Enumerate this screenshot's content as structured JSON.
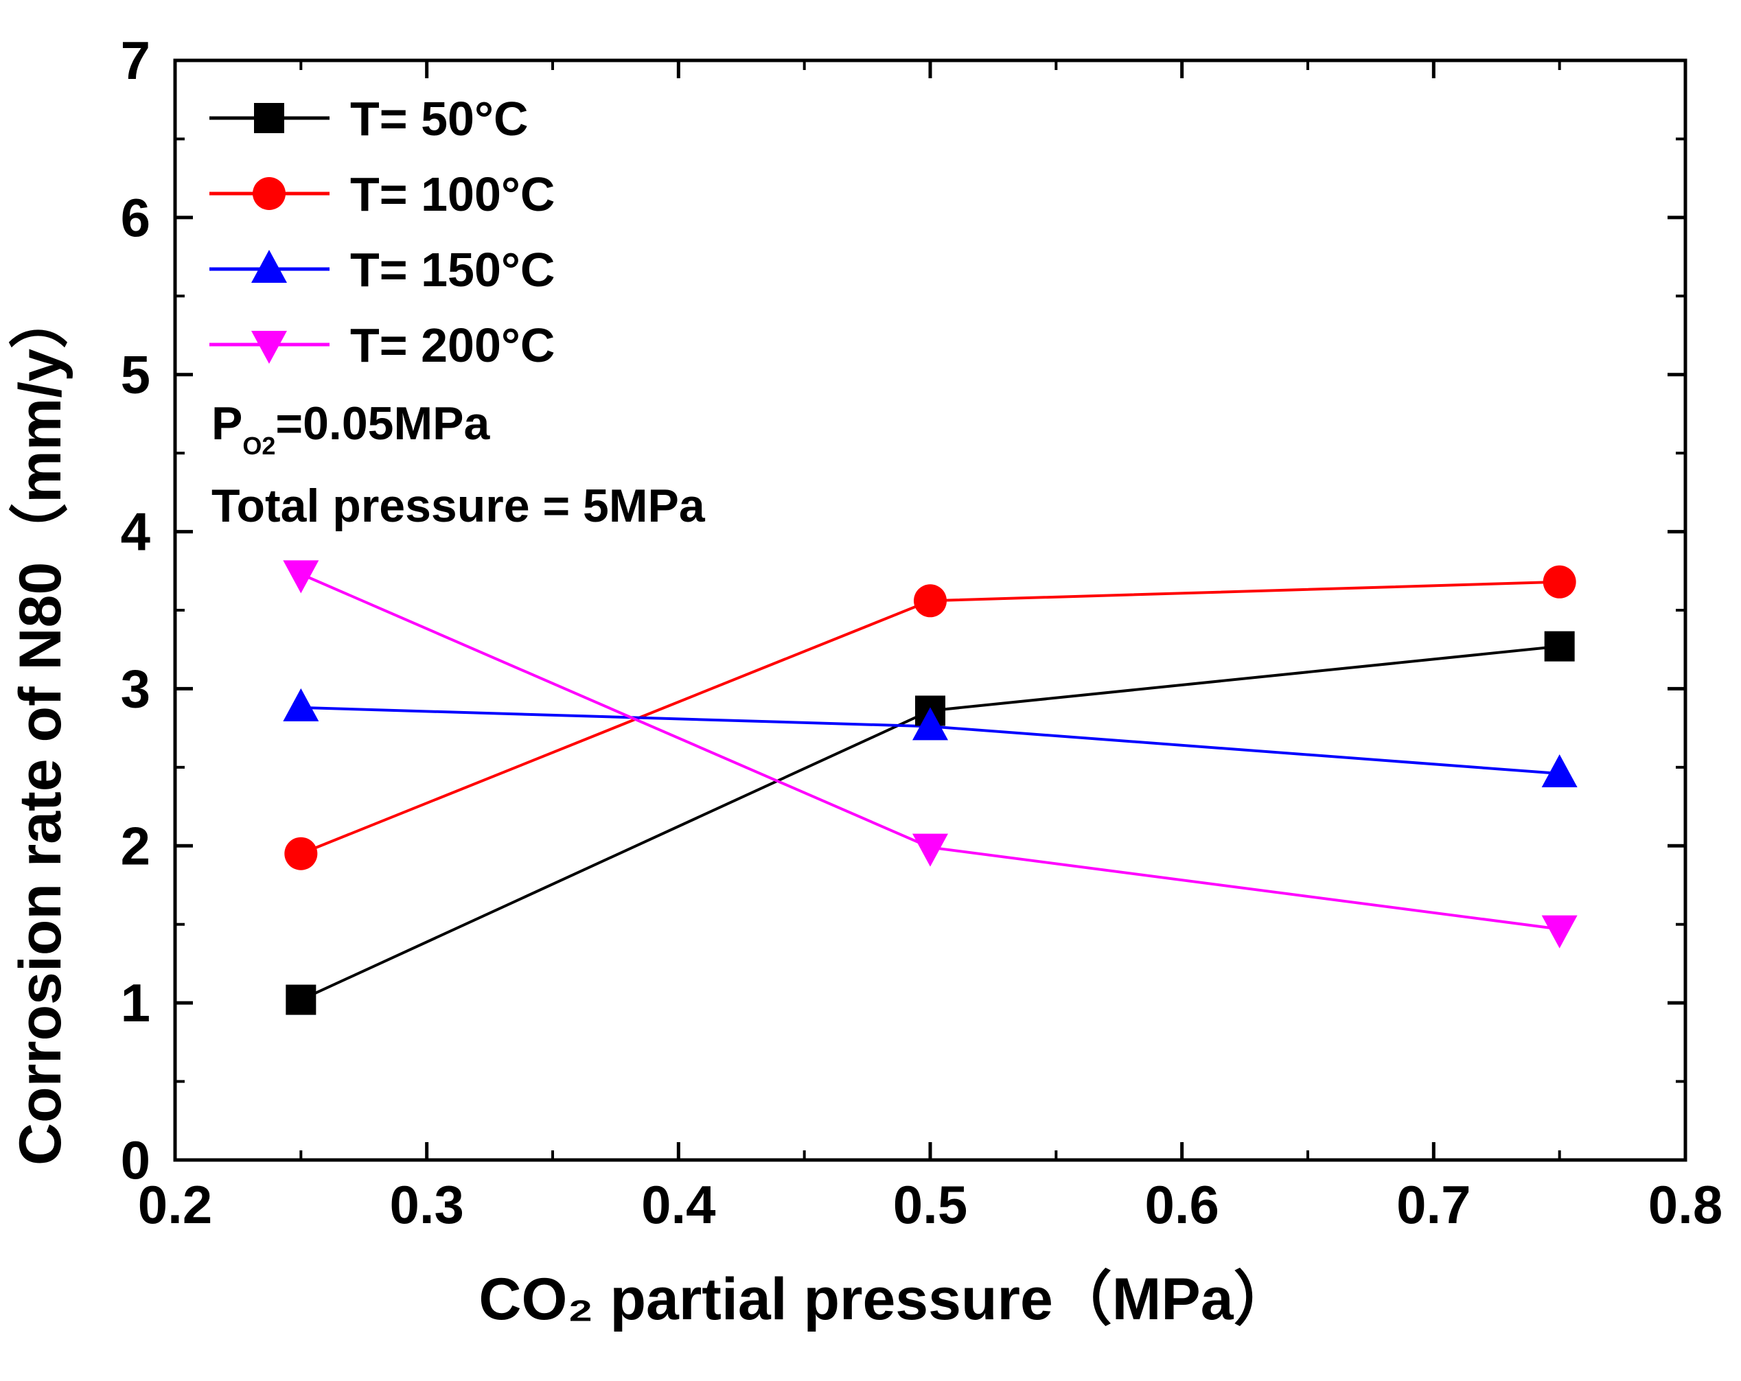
{
  "chart_data": {
    "type": "line",
    "xlabel": "CO₂ partial pressure（MPa）",
    "ylabel": "Corrosion rate of N80（mm/y）",
    "xlim": [
      0.2,
      0.8
    ],
    "ylim": [
      0,
      7
    ],
    "xticks": [
      "0.2",
      "0.3",
      "0.4",
      "0.5",
      "0.6",
      "0.7",
      "0.8"
    ],
    "yticks": [
      "0",
      "1",
      "2",
      "3",
      "4",
      "5",
      "6",
      "7"
    ],
    "grid": false,
    "legend_position": "top-left",
    "series": [
      {
        "name": "T= 50°C",
        "color": "#000000",
        "marker": "square",
        "x": [
          0.25,
          0.5,
          0.75
        ],
        "y": [
          1.02,
          2.86,
          3.27
        ]
      },
      {
        "name": "T= 100°C",
        "color": "#ff0000",
        "marker": "circle",
        "x": [
          0.25,
          0.5,
          0.75
        ],
        "y": [
          1.95,
          3.56,
          3.68
        ]
      },
      {
        "name": "T= 150°C",
        "color": "#0000ff",
        "marker": "triangle-up",
        "x": [
          0.25,
          0.5,
          0.75
        ],
        "y": [
          2.88,
          2.76,
          2.46
        ]
      },
      {
        "name": "T= 200°C",
        "color": "#ff00ff",
        "marker": "triangle-down",
        "x": [
          0.25,
          0.5,
          0.75
        ],
        "y": [
          3.73,
          1.99,
          1.47
        ]
      }
    ],
    "annotations": {
      "po2_main": "P",
      "po2_sub": "O2",
      "po2_value": "=0.05MPa",
      "total_pressure": "Total pressure = 5MPa"
    }
  }
}
